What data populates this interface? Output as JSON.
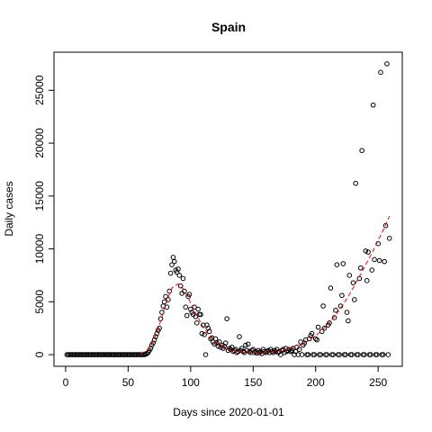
{
  "chart_data": {
    "type": "scatter",
    "title": "Spain",
    "x_label": "Days since 2020-01-01",
    "y_label": "Daily cases",
    "xlim": [
      -9.3,
      269.3
    ],
    "ylim": [
      -1100,
      28600
    ],
    "xticks": [
      0,
      50,
      100,
      150,
      200,
      250
    ],
    "yticks": [
      0,
      5000,
      10000,
      15000,
      20000,
      25000
    ],
    "series": [
      {
        "name": "Daily cases",
        "color": "#000000",
        "x": [
          1,
          2,
          3,
          4,
          5,
          6,
          7,
          8,
          9,
          10,
          11,
          12,
          13,
          14,
          15,
          16,
          17,
          18,
          19,
          20,
          21,
          22,
          23,
          24,
          25,
          26,
          27,
          28,
          29,
          30,
          31,
          32,
          33,
          34,
          35,
          36,
          37,
          38,
          39,
          40,
          41,
          42,
          43,
          44,
          45,
          46,
          47,
          48,
          49,
          50,
          51,
          52,
          53,
          54,
          55,
          56,
          57,
          58,
          59,
          60,
          61,
          62,
          63,
          64,
          65,
          66,
          67,
          68,
          69,
          70,
          71,
          72,
          73,
          74,
          75,
          76,
          77,
          78,
          79,
          80,
          81,
          82,
          83,
          84,
          85,
          86,
          87,
          88,
          89,
          90,
          91,
          92,
          93,
          94,
          95,
          96,
          97,
          98,
          99,
          100,
          101,
          102,
          103,
          104,
          105,
          106,
          107,
          108,
          109,
          110,
          111,
          112,
          113,
          114,
          115,
          116,
          117,
          118,
          119,
          120,
          121,
          122,
          123,
          124,
          125,
          126,
          127,
          128,
          129,
          130,
          131,
          132,
          133,
          134,
          135,
          136,
          137,
          138,
          139,
          140,
          141,
          142,
          143,
          144,
          145,
          146,
          147,
          148,
          149,
          150,
          151,
          152,
          153,
          154,
          155,
          156,
          157,
          158,
          159,
          160,
          161,
          162,
          163,
          164,
          165,
          166,
          167,
          168,
          169,
          170,
          171,
          172,
          173,
          174,
          175,
          176,
          177,
          178,
          179,
          180,
          181,
          182,
          183,
          184,
          185,
          186,
          187,
          188,
          189,
          190,
          191,
          192,
          193,
          194,
          195,
          196,
          197,
          198,
          199,
          200,
          201,
          202,
          203,
          204,
          205,
          206,
          207,
          208,
          209,
          210,
          211,
          212,
          213,
          214,
          215,
          216,
          217,
          218,
          219,
          220,
          221,
          222,
          223,
          224,
          225,
          226,
          227,
          228,
          229,
          230,
          231,
          232,
          233,
          234,
          235,
          236,
          237,
          238,
          239,
          240,
          241,
          242,
          243,
          244,
          245,
          246,
          247,
          248,
          249,
          250,
          251,
          252,
          253,
          254,
          255,
          256,
          257,
          258,
          259
        ],
        "values": [
          0,
          0,
          0,
          0,
          0,
          0,
          0,
          0,
          0,
          0,
          0,
          0,
          0,
          0,
          0,
          0,
          0,
          0,
          0,
          0,
          0,
          0,
          0,
          0,
          0,
          0,
          0,
          0,
          0,
          0,
          0,
          0,
          0,
          0,
          0,
          0,
          0,
          0,
          0,
          0,
          0,
          0,
          0,
          0,
          0,
          0,
          0,
          0,
          0,
          0,
          0,
          0,
          0,
          0,
          0,
          0,
          0,
          0,
          0,
          0,
          0,
          0,
          0,
          50,
          100,
          200,
          400,
          600,
          900,
          1100,
          1400,
          1700,
          2000,
          2300,
          2500,
          3400,
          4000,
          4600,
          5000,
          5500,
          4500,
          5200,
          6000,
          7700,
          8500,
          9200,
          8800,
          8000,
          7800,
          8100,
          7500,
          6500,
          5800,
          7200,
          6000,
          4500,
          3700,
          5500,
          5700,
          4300,
          4000,
          3800,
          4500,
          3600,
          3000,
          4300,
          3800,
          3800,
          2000,
          2800,
          1900,
          0,
          2800,
          2500,
          2200,
          1500,
          1600,
          1200,
          1000,
          1500,
          1100,
          800,
          1200,
          700,
          900,
          600,
          800,
          1100,
          3400,
          400,
          600,
          500,
          700,
          300,
          400,
          500,
          200,
          300,
          1700,
          400,
          600,
          300,
          200,
          900,
          400,
          1000,
          300,
          200,
          400,
          500,
          200,
          300,
          150,
          400,
          200,
          300,
          100,
          500,
          300,
          200,
          300,
          400,
          200,
          500,
          300,
          200,
          400,
          300,
          500,
          200,
          300,
          0,
          400,
          500,
          200,
          600,
          300,
          400,
          500,
          300,
          400,
          600,
          0,
          300,
          700,
          0,
          500,
          1200,
          0,
          900,
          1100,
          1400,
          0,
          0,
          1500,
          1800,
          2000,
          0,
          0,
          1500,
          1400,
          2600,
          0,
          0,
          2200,
          4600,
          2500,
          0,
          0,
          2800,
          3000,
          6300,
          0,
          0,
          3500,
          4200,
          8500,
          0,
          0,
          4600,
          5600,
          8600,
          0,
          0,
          4000,
          3200,
          7500,
          0,
          0,
          6800,
          5200,
          16200,
          0,
          0,
          7200,
          8200,
          19300,
          0,
          0,
          9800,
          7000,
          9700,
          0,
          0,
          8000,
          23600,
          9000,
          0,
          0,
          10500,
          8900,
          26700,
          0,
          0,
          8800,
          12200,
          27500,
          0,
          11000
        ]
      },
      {
        "name": "Fit",
        "color": "#ff0000",
        "x": [
          60,
          65,
          70,
          75,
          80,
          85,
          90,
          95,
          100,
          105,
          110,
          115,
          120,
          125,
          130,
          135,
          140,
          145,
          150,
          155,
          160,
          165,
          170,
          175,
          180,
          185,
          190,
          195,
          200,
          205,
          210,
          215,
          220,
          225,
          230,
          235,
          240,
          245,
          250,
          255,
          259
        ],
        "values": [
          100,
          400,
          1200,
          2800,
          4800,
          6300,
          6700,
          6100,
          4900,
          3700,
          2600,
          1800,
          1200,
          800,
          500,
          350,
          250,
          200,
          180,
          180,
          200,
          250,
          330,
          450,
          600,
          800,
          1050,
          1400,
          1800,
          2300,
          2900,
          3600,
          4400,
          5300,
          6300,
          7400,
          8500,
          9600,
          10800,
          12000,
          13100
        ]
      }
    ]
  }
}
